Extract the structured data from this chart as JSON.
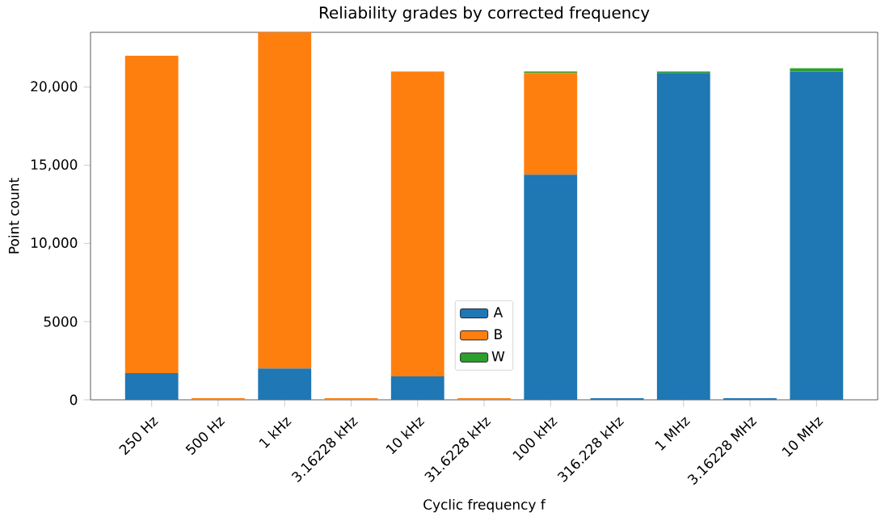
{
  "chart_data": {
    "type": "bar",
    "stacked": true,
    "title": "Reliability grades by corrected frequency",
    "xlabel": "Cyclic frequency f",
    "ylabel": "Point count",
    "categories": [
      "250 Hz",
      "500 Hz",
      "1 kHz",
      "3.16228 kHz",
      "10 kHz",
      "31.6228 kHz",
      "100 kHz",
      "316.228 kHz",
      "1 MHz",
      "3.16228 MHz",
      "10 MHz"
    ],
    "series": [
      {
        "name": "A",
        "color": "#1f77b4",
        "values": [
          1700,
          0,
          2000,
          0,
          1500,
          0,
          14400,
          100,
          20900,
          100,
          21000
        ]
      },
      {
        "name": "B",
        "color": "#ff7f0e",
        "values": [
          20300,
          100,
          21500,
          100,
          19500,
          100,
          6500,
          0,
          0,
          0,
          0
        ]
      },
      {
        "name": "W",
        "color": "#2ca02c",
        "values": [
          0,
          0,
          0,
          0,
          0,
          0,
          100,
          0,
          100,
          0,
          200
        ]
      }
    ],
    "ylim": [
      0,
      23500
    ],
    "yticks": [
      0,
      5000,
      {
        "value": 10000,
        "label": "10,000"
      },
      {
        "value": 15000,
        "label": "15,000"
      },
      {
        "value": 20000,
        "label": "20,000"
      }
    ],
    "legend": "bottom",
    "grid": false
  }
}
